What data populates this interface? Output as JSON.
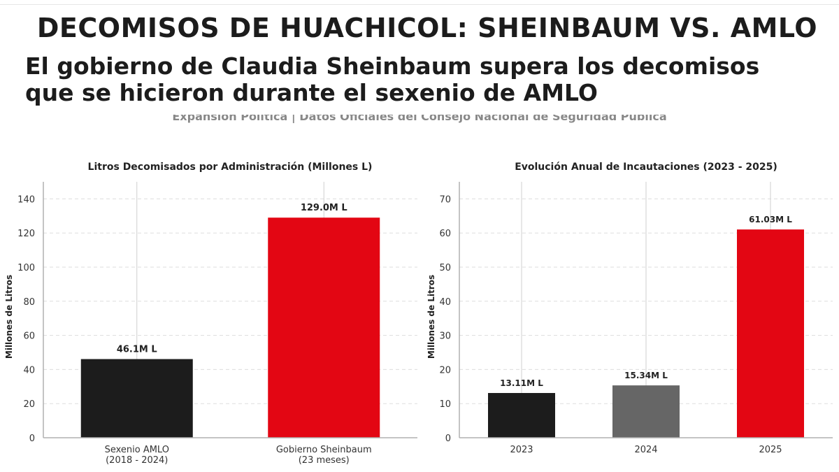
{
  "header": {
    "title": "DECOMISOS DE HUACHICOL: SHEINBAUM VS. AMLO",
    "subtitle_line1": "El gobierno de Claudia Sheinbaum supera los decomisos",
    "subtitle_line2": "que se hicieron durante el sexenio de AMLO",
    "source": "Expansión Política | Datos Oficiales del Consejo Nacional de Seguridad Pública"
  },
  "colors": {
    "amlo": "#1c1c1c",
    "sheinbaum": "#e30613",
    "gray": "#666666",
    "grid": "#dddddd",
    "axis": "#b0b0b0"
  },
  "chart_data": [
    {
      "type": "bar",
      "title": "Litros Decomisados por Administración (Millones L)",
      "ylabel": "Millones de Litros",
      "xlabel": "",
      "ylim": [
        0,
        150
      ],
      "yticks": [
        0,
        20,
        40,
        60,
        80,
        100,
        120,
        140
      ],
      "grid": true,
      "categories": [
        [
          "Sexenio AMLO",
          "(2018 - 2024)"
        ],
        [
          "Gobierno Sheinbaum",
          "(23 meses)"
        ]
      ],
      "values": [
        46.1,
        129.0
      ],
      "data_labels": [
        "46.1M L",
        "129.0M L"
      ],
      "bar_colors": [
        "#1c1c1c",
        "#e30613"
      ]
    },
    {
      "type": "bar",
      "title": "Evolución Anual de Incautaciones (2023 - 2025)",
      "ylabel": "Millones de Litros",
      "xlabel": "",
      "ylim": [
        0,
        75
      ],
      "yticks": [
        0,
        10,
        20,
        30,
        40,
        50,
        60,
        70
      ],
      "grid": true,
      "categories": [
        [
          "2023"
        ],
        [
          "2024"
        ],
        [
          "2025"
        ]
      ],
      "values": [
        13.11,
        15.34,
        61.03
      ],
      "data_labels": [
        "13.11M L",
        "15.34M L",
        "61.03M L"
      ],
      "bar_colors": [
        "#1c1c1c",
        "#666666",
        "#e30613"
      ]
    }
  ]
}
